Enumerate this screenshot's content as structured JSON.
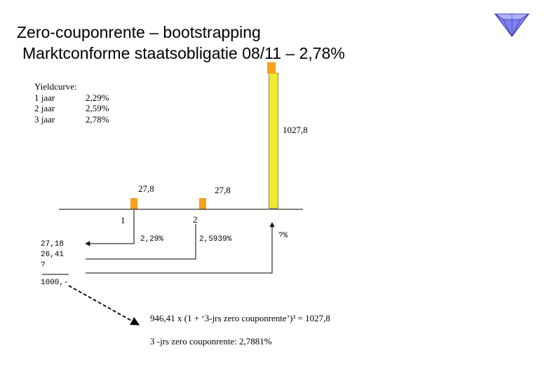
{
  "title": {
    "line1": "Zero-couponrente – bootstrapping",
    "line2": "Marktconforme staatsobligatie 08/11 – 2,78%"
  },
  "yieldcurve": {
    "heading": "Yieldcurve:",
    "rows": [
      {
        "term": "1 jaar",
        "rate": "2,29%"
      },
      {
        "term": "2 jaar",
        "rate": "2,59%"
      },
      {
        "term": "3 jaar",
        "rate": "2,78%"
      }
    ]
  },
  "cashflows": {
    "year1": "27,8",
    "year2": "27,8",
    "year3": "1027,8"
  },
  "years": {
    "y1": "1",
    "y2": "2"
  },
  "rates": {
    "r1": "2,29%",
    "r2": "2,5939%",
    "r3": "?%"
  },
  "present_values": {
    "pv1": "27,18",
    "pv2": "26,41",
    "pv3": "?",
    "price": "1000,-"
  },
  "formula": "946,41 x (1 + ‘3-jrs zero couponrente’)³ = 1027,8",
  "result": "3 -jrs zero couponrente: 2,7881%",
  "colors": {
    "coupon_bar": "#f7a21b",
    "principal_bar": "#f0ea30",
    "gem": "#8080f0"
  }
}
